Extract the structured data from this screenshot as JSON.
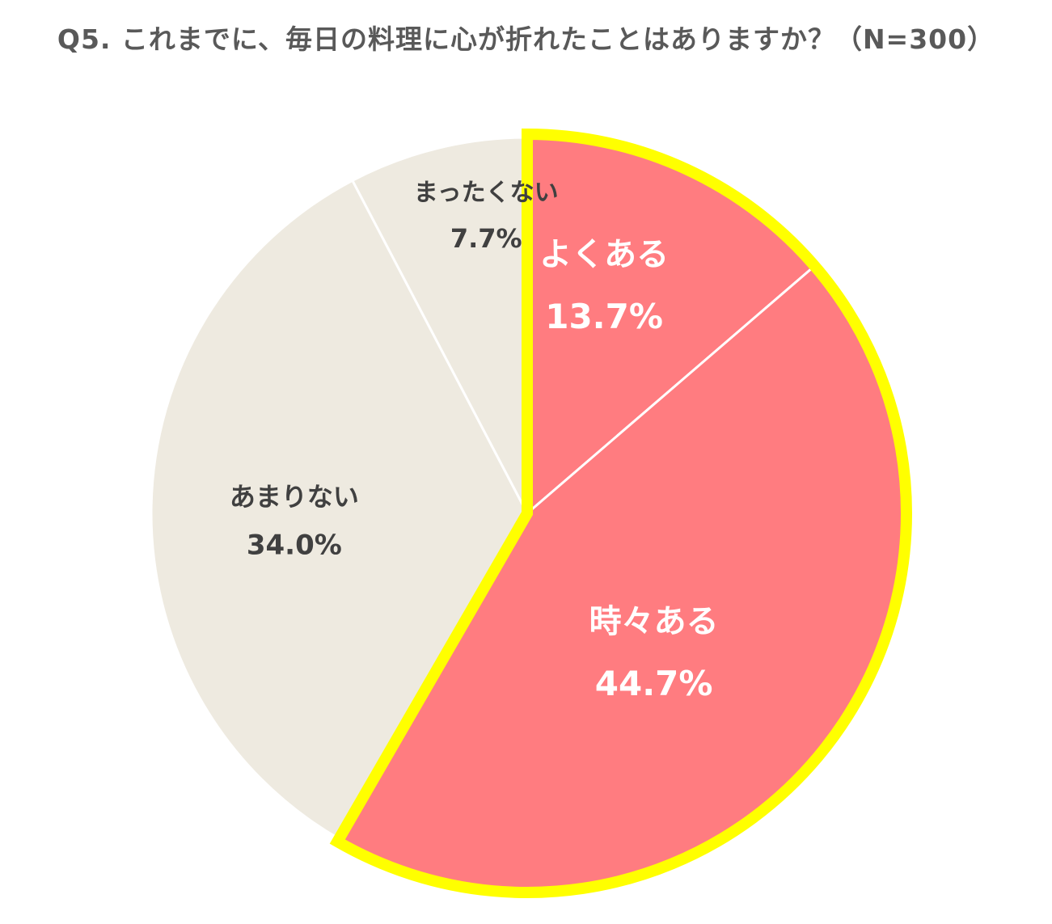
{
  "chart_data": {
    "type": "pie",
    "title": "Q5. これまでに、毎日の料理に心が折れたことはありますか？（N=300）",
    "start_angle": "12 o'clock",
    "direction": "clockwise",
    "highlight_color": "#FFFF00",
    "slices": [
      {
        "label": "よくある",
        "value": 13.7,
        "value_label": "13.7%",
        "color": "#FF7C80",
        "text_color": "#FFFFFF",
        "highlighted": true
      },
      {
        "label": "時々ある",
        "value": 44.7,
        "value_label": "44.7%",
        "color": "#FF7C80",
        "text_color": "#FFFFFF",
        "highlighted": true
      },
      {
        "label": "あまりない",
        "value": 34.0,
        "value_label": "34.0%",
        "color": "#EEEAE0",
        "text_color": "#404040",
        "highlighted": false
      },
      {
        "label": "まったくない",
        "value": 7.7,
        "value_label": "7.7%",
        "color": "#EEEAE0",
        "text_color": "#404040",
        "highlighted": false
      }
    ]
  }
}
